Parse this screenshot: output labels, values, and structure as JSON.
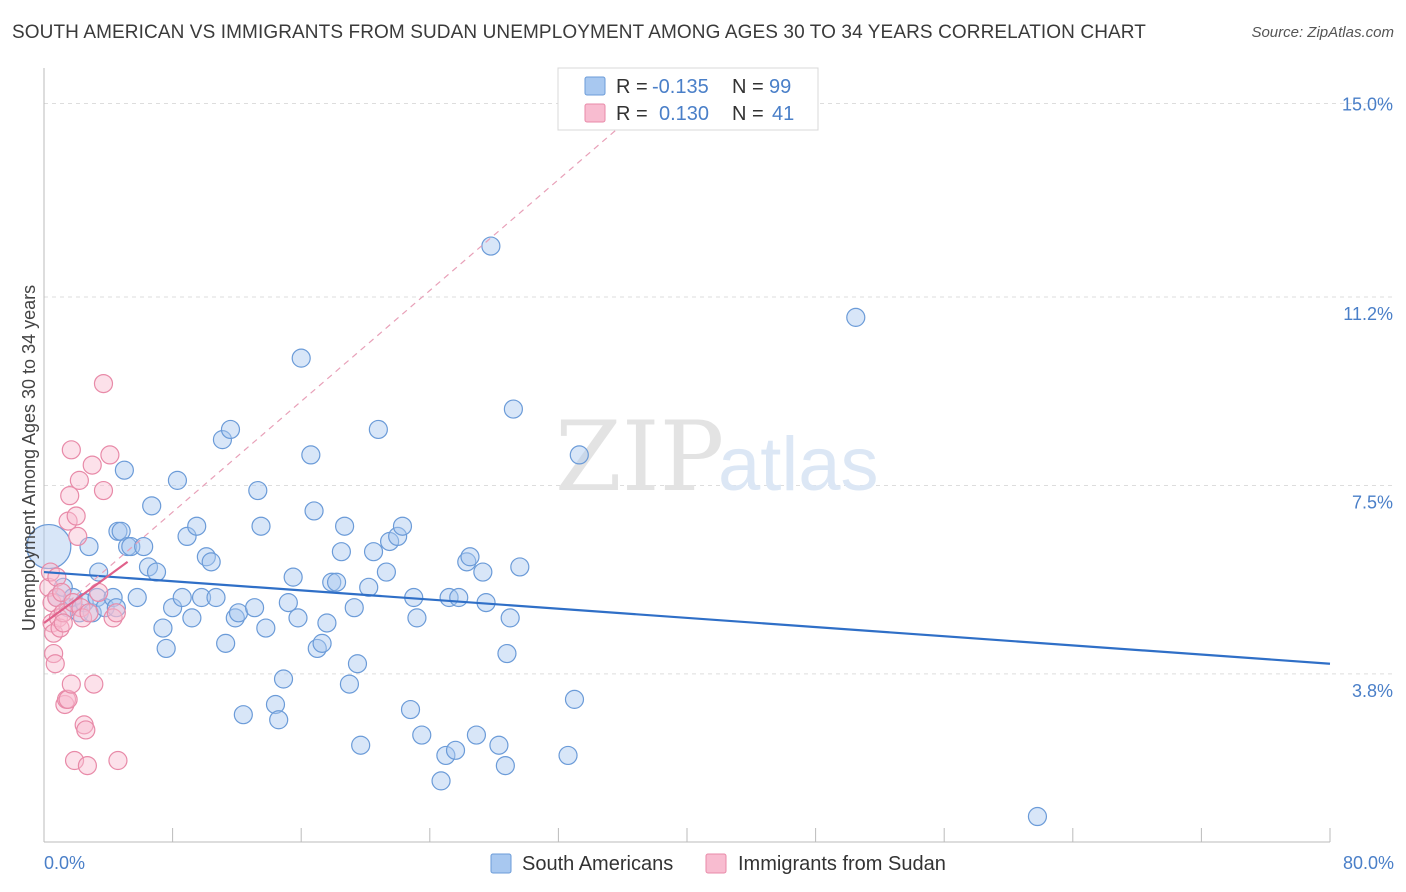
{
  "header": {
    "title": "SOUTH AMERICAN VS IMMIGRANTS FROM SUDAN UNEMPLOYMENT AMONG AGES 30 TO 34 YEARS CORRELATION CHART",
    "source": "Source: ZipAtlas.com"
  },
  "watermark": {
    "zip": "ZIP",
    "atlas": "atlas"
  },
  "legend": {
    "rows": [
      {
        "r_label": "R =",
        "r_value": "-0.135",
        "n_label": "N =",
        "n_value": "99",
        "color": "#a8c8f0",
        "stroke": "#6b9bd8"
      },
      {
        "r_label": "R =",
        "r_value": "0.130",
        "n_label": "N =",
        "n_value": "41",
        "color": "#f8bcd0",
        "stroke": "#e88aa8"
      }
    ]
  },
  "bottom_legend": {
    "items": [
      {
        "label": "South Americans",
        "color": "#a8c8f0",
        "stroke": "#6b9bd8"
      },
      {
        "label": "Immigrants from Sudan",
        "color": "#f8bcd0",
        "stroke": "#e88aa8"
      }
    ]
  },
  "chart_data": {
    "type": "scatter",
    "title": "SOUTH AMERICAN VS IMMIGRANTS FROM SUDAN UNEMPLOYMENT AMONG AGES 30 TO 34 YEARS CORRELATION CHART",
    "xlabel": "",
    "ylabel": "Unemployment Among Ages 30 to 34 years",
    "xlim": [
      0,
      80
    ],
    "ylim": [
      0.5,
      15.5
    ],
    "x_tick_labels": {
      "min": "0.0%",
      "max": "80.0%"
    },
    "y_ticks": [
      {
        "value": 3.8,
        "label": "3.8%"
      },
      {
        "value": 7.5,
        "label": "7.5%"
      },
      {
        "value": 11.2,
        "label": "11.2%"
      },
      {
        "value": 15.0,
        "label": "15.0%"
      }
    ],
    "grid": true,
    "series": [
      {
        "name": "South Americans",
        "color": "#6b9bd8",
        "fill": "#a8c8f0",
        "trend": {
          "x0": 0,
          "y0": 5.8,
          "x1": 80,
          "y1": 4.0
        },
        "points": [
          [
            0.3,
            6.3
          ],
          [
            0.8,
            5.3
          ],
          [
            1.2,
            5.5
          ],
          [
            1.5,
            5.1
          ],
          [
            1.8,
            5.3
          ],
          [
            2.2,
            5.0
          ],
          [
            2.5,
            5.2
          ],
          [
            3.0,
            5.0
          ],
          [
            2.8,
            6.3
          ],
          [
            3.3,
            5.3
          ],
          [
            3.4,
            5.8
          ],
          [
            3.8,
            5.1
          ],
          [
            4.3,
            5.3
          ],
          [
            4.5,
            5.1
          ],
          [
            4.6,
            6.6
          ],
          [
            4.8,
            6.6
          ],
          [
            5.2,
            6.3
          ],
          [
            5.4,
            6.3
          ],
          [
            5.8,
            5.3
          ],
          [
            6.2,
            6.3
          ],
          [
            6.5,
            5.9
          ],
          [
            6.7,
            7.1
          ],
          [
            7.0,
            5.8
          ],
          [
            7.4,
            4.7
          ],
          [
            7.6,
            4.3
          ],
          [
            8.0,
            5.1
          ],
          [
            8.3,
            7.6
          ],
          [
            8.6,
            5.3
          ],
          [
            8.9,
            6.5
          ],
          [
            9.2,
            4.9
          ],
          [
            9.5,
            6.7
          ],
          [
            9.8,
            5.3
          ],
          [
            10.1,
            6.1
          ],
          [
            10.4,
            6.0
          ],
          [
            10.7,
            5.3
          ],
          [
            11.1,
            8.4
          ],
          [
            11.3,
            4.4
          ],
          [
            11.6,
            8.6
          ],
          [
            11.9,
            4.9
          ],
          [
            12.1,
            5.0
          ],
          [
            12.4,
            3.0
          ],
          [
            13.1,
            5.1
          ],
          [
            13.3,
            7.4
          ],
          [
            13.5,
            6.7
          ],
          [
            13.8,
            4.7
          ],
          [
            14.4,
            3.2
          ],
          [
            14.6,
            2.9
          ],
          [
            14.9,
            3.7
          ],
          [
            15.2,
            5.2
          ],
          [
            15.5,
            5.7
          ],
          [
            15.8,
            4.9
          ],
          [
            16.0,
            10.0
          ],
          [
            16.6,
            8.1
          ],
          [
            16.8,
            7.0
          ],
          [
            17.0,
            4.3
          ],
          [
            17.3,
            4.4
          ],
          [
            17.6,
            4.8
          ],
          [
            17.9,
            5.6
          ],
          [
            18.2,
            5.6
          ],
          [
            18.5,
            6.2
          ],
          [
            18.7,
            6.7
          ],
          [
            19.0,
            3.6
          ],
          [
            19.3,
            5.1
          ],
          [
            19.5,
            4.0
          ],
          [
            19.7,
            2.4
          ],
          [
            20.2,
            5.5
          ],
          [
            20.5,
            6.2
          ],
          [
            20.8,
            8.6
          ],
          [
            21.3,
            5.8
          ],
          [
            21.5,
            6.4
          ],
          [
            22.0,
            6.5
          ],
          [
            22.3,
            6.7
          ],
          [
            22.8,
            3.1
          ],
          [
            23.0,
            5.3
          ],
          [
            23.2,
            4.9
          ],
          [
            23.5,
            2.6
          ],
          [
            24.7,
            1.7
          ],
          [
            25.0,
            2.2
          ],
          [
            25.6,
            2.3
          ],
          [
            25.2,
            5.3
          ],
          [
            25.8,
            5.3
          ],
          [
            26.3,
            6.0
          ],
          [
            26.5,
            6.1
          ],
          [
            26.9,
            2.6
          ],
          [
            27.3,
            5.8
          ],
          [
            27.5,
            5.2
          ],
          [
            27.8,
            12.2
          ],
          [
            28.3,
            2.4
          ],
          [
            28.7,
            2.0
          ],
          [
            28.8,
            4.2
          ],
          [
            29.0,
            4.9
          ],
          [
            29.6,
            5.9
          ],
          [
            29.2,
            9.0
          ],
          [
            32.6,
            2.2
          ],
          [
            33.0,
            3.3
          ],
          [
            33.3,
            8.1
          ],
          [
            50.5,
            10.8
          ],
          [
            61.8,
            1.0
          ],
          [
            5.0,
            7.8
          ]
        ],
        "sizes": {
          "big_first": true
        }
      },
      {
        "name": "Immigrants from Sudan",
        "color": "#e88aa8",
        "fill": "#f8bcd0",
        "trend": {
          "x0": 0,
          "y0": 4.8,
          "x1": 5.2,
          "y1": 6.0
        },
        "trend_extended": {
          "x0": 0,
          "y0": 4.8,
          "x1": 37.5,
          "y1": 15.0
        },
        "points": [
          [
            0.3,
            5.5
          ],
          [
            0.4,
            5.8
          ],
          [
            0.5,
            5.2
          ],
          [
            0.5,
            4.8
          ],
          [
            0.6,
            4.6
          ],
          [
            0.6,
            4.2
          ],
          [
            0.7,
            4.0
          ],
          [
            0.8,
            5.7
          ],
          [
            0.8,
            5.3
          ],
          [
            0.9,
            4.9
          ],
          [
            1.0,
            4.7
          ],
          [
            1.1,
            5.4
          ],
          [
            1.2,
            5.0
          ],
          [
            1.2,
            4.8
          ],
          [
            1.3,
            3.2
          ],
          [
            1.4,
            3.3
          ],
          [
            1.5,
            3.3
          ],
          [
            1.6,
            7.3
          ],
          [
            1.5,
            6.8
          ],
          [
            1.7,
            8.2
          ],
          [
            1.7,
            3.6
          ],
          [
            1.8,
            5.2
          ],
          [
            1.9,
            2.1
          ],
          [
            2.0,
            6.9
          ],
          [
            2.1,
            6.5
          ],
          [
            2.2,
            7.6
          ],
          [
            2.3,
            5.1
          ],
          [
            2.4,
            4.9
          ],
          [
            2.5,
            2.8
          ],
          [
            2.6,
            2.7
          ],
          [
            2.7,
            2.0
          ],
          [
            2.8,
            5.0
          ],
          [
            3.0,
            7.9
          ],
          [
            3.1,
            3.6
          ],
          [
            3.4,
            5.4
          ],
          [
            3.7,
            7.4
          ],
          [
            4.1,
            8.1
          ],
          [
            4.3,
            4.9
          ],
          [
            4.5,
            5.0
          ],
          [
            3.7,
            9.5
          ],
          [
            4.6,
            2.1
          ]
        ]
      }
    ]
  }
}
